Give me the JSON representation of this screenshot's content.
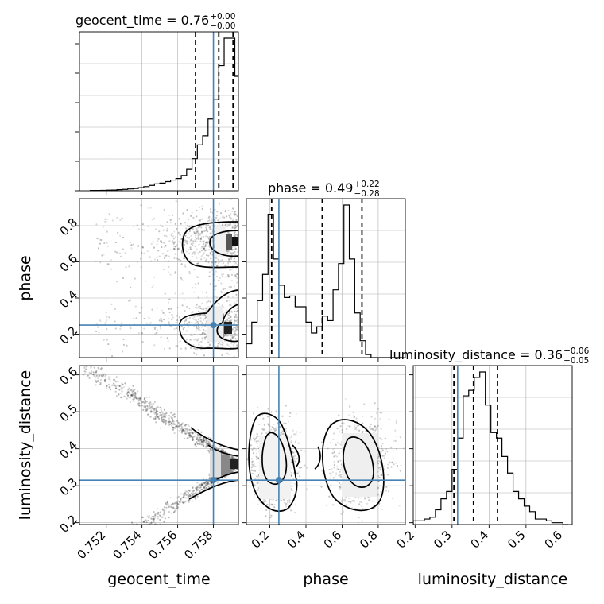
{
  "chart_data": {
    "type": "corner",
    "parameters": [
      {
        "name": "geocent_time",
        "range": [
          0.7505,
          0.7594
        ],
        "truth": 0.758,
        "median": 0.76,
        "plus": "+0.00",
        "minus": "−0.00",
        "quantiles": [
          0.757,
          0.7583,
          0.7591
        ],
        "ticks": [
          "0.752",
          "0.754",
          "0.756",
          "0.758"
        ]
      },
      {
        "name": "phase",
        "range": [
          0.07,
          0.95
        ],
        "truth": 0.25,
        "median": 0.49,
        "plus": "+0.22",
        "minus": "−0.28",
        "quantiles": [
          0.21,
          0.49,
          0.71
        ],
        "ticks": [
          "0.2",
          "0.4",
          "0.6",
          "0.8"
        ]
      },
      {
        "name": "luminosity_distance",
        "range": [
          0.195,
          0.625
        ],
        "truth": 0.315,
        "median": 0.36,
        "plus": "+0.06",
        "minus": "−0.05",
        "quantiles": [
          0.305,
          0.358,
          0.423
        ],
        "ticks": [
          "0.2",
          "0.3",
          "0.4",
          "0.5",
          "0.6"
        ]
      }
    ],
    "histograms": {
      "geocent_time": {
        "edges": [
          0.7511,
          0.7514,
          0.7517,
          0.752,
          0.7523,
          0.7526,
          0.7529,
          0.7532,
          0.7535,
          0.7538,
          0.7541,
          0.7544,
          0.7547,
          0.755,
          0.7553,
          0.7556,
          0.7559,
          0.7562,
          0.7565,
          0.7568,
          0.7571,
          0.7574,
          0.7577,
          0.758,
          0.7583,
          0.7586,
          0.7589,
          0.7592,
          0.7595
        ],
        "counts": [
          0.2,
          0.2,
          0.3,
          0.4,
          0.5,
          0.7,
          0.9,
          1.2,
          1.5,
          2,
          2.7,
          3.5,
          4.5,
          5,
          6,
          7,
          8,
          10,
          14,
          21,
          30,
          36,
          47,
          60,
          82,
          100,
          100,
          75
        ]
      },
      "phase": {
        "edges": [
          0.07,
          0.1,
          0.13,
          0.16,
          0.19,
          0.22,
          0.25,
          0.28,
          0.31,
          0.34,
          0.37,
          0.4,
          0.43,
          0.46,
          0.49,
          0.52,
          0.55,
          0.58,
          0.61,
          0.64,
          0.67,
          0.7,
          0.73,
          0.76,
          0.79,
          0.82,
          0.85,
          0.88,
          0.91,
          0.94
        ],
        "counts": [
          9,
          23,
          37,
          54,
          93,
          64,
          47,
          39,
          40,
          33,
          33,
          23,
          16,
          20,
          27,
          24,
          44,
          61,
          99,
          64,
          29,
          11,
          2,
          0,
          0,
          0,
          0,
          0,
          0
        ]
      },
      "luminosity_distance": {
        "edges": [
          0.195,
          0.21,
          0.225,
          0.24,
          0.255,
          0.27,
          0.285,
          0.3,
          0.315,
          0.33,
          0.345,
          0.36,
          0.375,
          0.39,
          0.405,
          0.42,
          0.435,
          0.45,
          0.465,
          0.48,
          0.495,
          0.51,
          0.525,
          0.54,
          0.555,
          0.57,
          0.585,
          0.6,
          0.615
        ],
        "counts": [
          2,
          2,
          3,
          4,
          8,
          14,
          18,
          30,
          47,
          70,
          73,
          80,
          83,
          65,
          50,
          47,
          37,
          28,
          18,
          14,
          10,
          7,
          3,
          3,
          2,
          1,
          1,
          0
        ]
      }
    },
    "colors": {
      "truth": "#4682b4",
      "ink": "#000000",
      "grid": "#b0b0b0",
      "scatter": "#444444"
    }
  }
}
